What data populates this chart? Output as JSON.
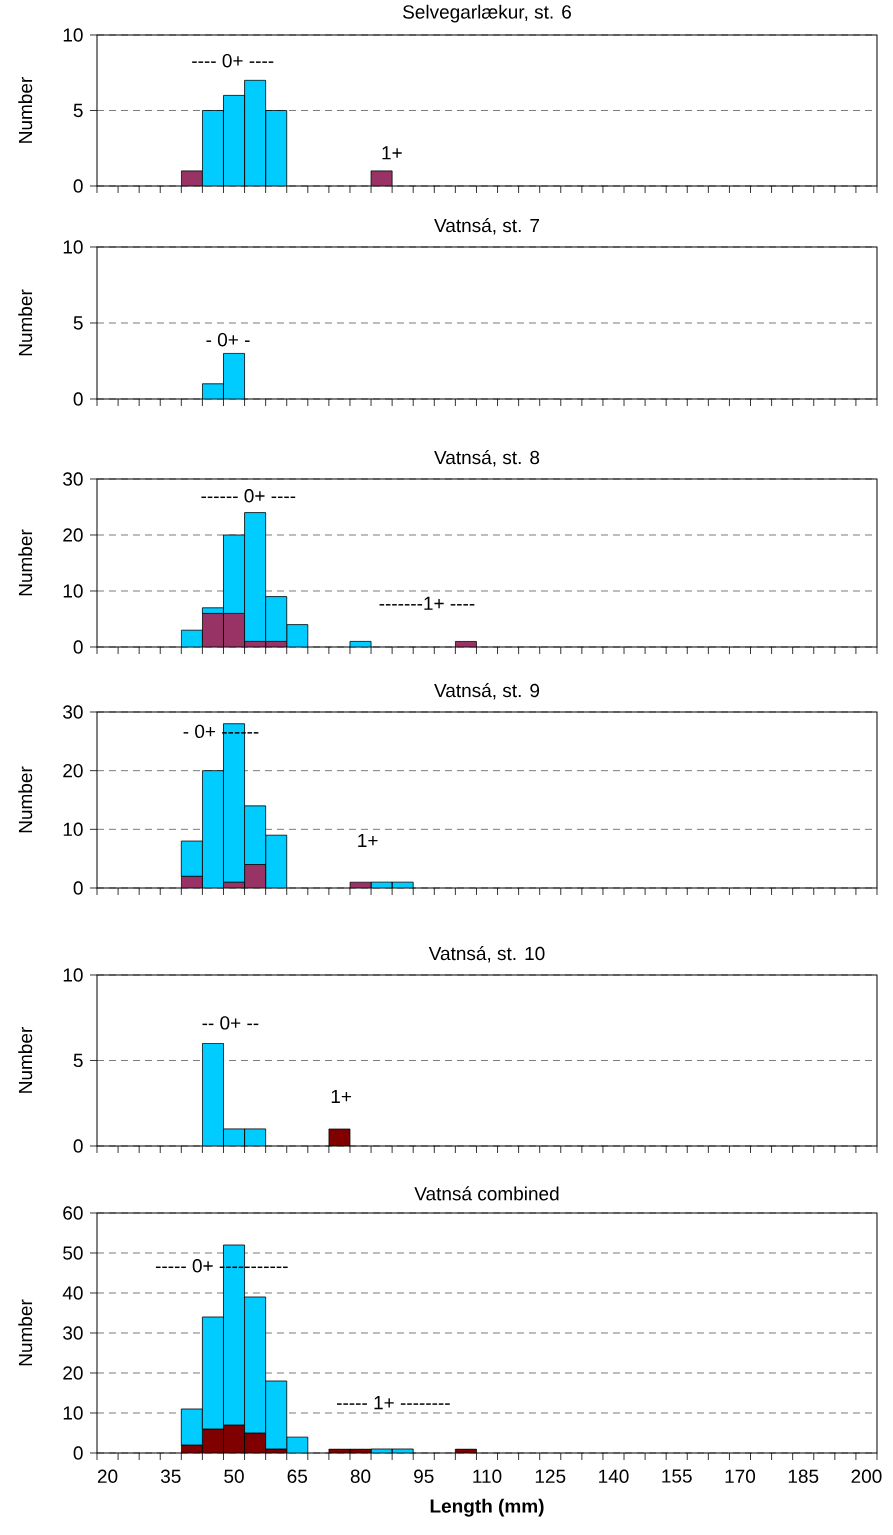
{
  "chart_data": [
    {
      "type": "bar",
      "title": "Selvegarlækur, st. 6",
      "ylabel": "Number",
      "stacked": true,
      "grid": "y",
      "tick_labels": "y",
      "ylim": [
        0,
        10
      ],
      "yticks": [
        0,
        5,
        10
      ],
      "categories": [
        "20",
        null,
        null,
        "35",
        null,
        null,
        "50",
        null,
        null,
        "65",
        null,
        null,
        "80",
        null,
        null,
        "95",
        null,
        null,
        "110",
        null,
        null,
        "125",
        null,
        null,
        "140",
        null,
        null,
        "155",
        null,
        null,
        "170",
        null,
        null,
        "185",
        null,
        null,
        "200"
      ],
      "annotations": [
        "---- 0+ ----",
        "1+"
      ],
      "series": [
        {
          "color": "#993366",
          "values": [
            null,
            null,
            null,
            null,
            1,
            null,
            null,
            null,
            null,
            null,
            null,
            null,
            null,
            1,
            null,
            null,
            null,
            null,
            null,
            null,
            null,
            null,
            null,
            null,
            null,
            null,
            null,
            null,
            null,
            null,
            null,
            null,
            null,
            null,
            null,
            null,
            null
          ]
        },
        {
          "color": "#00ccff",
          "values": [
            null,
            null,
            null,
            null,
            null,
            5,
            6,
            7,
            5,
            null,
            null,
            null,
            null,
            null,
            null,
            null,
            null,
            null,
            null,
            null,
            null,
            null,
            null,
            null,
            null,
            null,
            null,
            null,
            null,
            null,
            null,
            null,
            null,
            null,
            null,
            null,
            null
          ]
        }
      ]
    },
    {
      "type": "bar",
      "title": "Vatnsá, st. 7",
      "ylabel": "Number",
      "stacked": true,
      "grid": "y",
      "tick_labels": "y",
      "ylim": [
        0,
        10
      ],
      "yticks": [
        0,
        5,
        10
      ],
      "categories": [
        "20",
        null,
        null,
        "35",
        null,
        null,
        "50",
        null,
        null,
        "65",
        null,
        null,
        "80",
        null,
        null,
        "95",
        null,
        null,
        "110",
        null,
        null,
        "125",
        null,
        null,
        "140",
        null,
        null,
        "155",
        null,
        null,
        "170",
        null,
        null,
        "185",
        null,
        null,
        "200"
      ],
      "annotations": [
        "- 0+ -"
      ],
      "series": [
        {
          "color": "#00ccff",
          "values": [
            null,
            null,
            null,
            null,
            null,
            1,
            3,
            null,
            null,
            null,
            null,
            null,
            null,
            null,
            null,
            null,
            null,
            null,
            null,
            null,
            null,
            null,
            null,
            null,
            null,
            null,
            null,
            null,
            null,
            null,
            null,
            null,
            null,
            null,
            null,
            null,
            null
          ]
        }
      ]
    },
    {
      "type": "bar",
      "title": "Vatnsá, st. 8",
      "ylabel": "Number",
      "stacked": true,
      "grid": "y",
      "tick_labels": "y",
      "ylim": [
        0,
        30
      ],
      "yticks": [
        0,
        10,
        20,
        30
      ],
      "categories": [
        "20",
        null,
        null,
        "35",
        null,
        null,
        "50",
        null,
        null,
        "65",
        null,
        null,
        "80",
        null,
        null,
        "95",
        null,
        null,
        "110",
        null,
        null,
        "125",
        null,
        null,
        "140",
        null,
        null,
        "155",
        null,
        null,
        "170",
        null,
        null,
        "185",
        null,
        null,
        "200"
      ],
      "annotations": [
        "------ 0+ ----",
        "-------1+  ----"
      ],
      "series": [
        {
          "color": "#993366",
          "values": [
            null,
            null,
            null,
            null,
            null,
            6,
            6,
            1,
            1,
            null,
            null,
            null,
            null,
            null,
            null,
            null,
            null,
            1,
            null,
            null,
            null,
            null,
            null,
            null,
            null,
            null,
            null,
            null,
            null,
            null,
            null,
            null,
            null,
            null,
            null,
            null,
            null
          ]
        },
        {
          "color": "#00ccff",
          "values": [
            null,
            null,
            null,
            null,
            3,
            1,
            14,
            23,
            8,
            4,
            null,
            null,
            1,
            null,
            null,
            null,
            null,
            null,
            null,
            null,
            null,
            null,
            null,
            null,
            null,
            null,
            null,
            null,
            null,
            null,
            null,
            null,
            null,
            null,
            null,
            null,
            null
          ]
        }
      ]
    },
    {
      "type": "bar",
      "title": "Vatnsá, st. 9",
      "ylabel": "Number",
      "stacked": true,
      "grid": "y",
      "tick_labels": "y",
      "ylim": [
        0,
        30
      ],
      "yticks": [
        0,
        10,
        20,
        30
      ],
      "categories": [
        "20",
        null,
        null,
        "35",
        null,
        null,
        "50",
        null,
        null,
        "65",
        null,
        null,
        "80",
        null,
        null,
        "95",
        null,
        null,
        "110",
        null,
        null,
        "125",
        null,
        null,
        "140",
        null,
        null,
        "155",
        null,
        null,
        "170",
        null,
        null,
        "185",
        null,
        null,
        "200"
      ],
      "annotations": [
        "- 0+ ------",
        "1+"
      ],
      "series": [
        {
          "color": "#993366",
          "values": [
            null,
            null,
            null,
            null,
            2,
            null,
            1,
            4,
            null,
            null,
            null,
            null,
            1,
            null,
            null,
            null,
            null,
            null,
            null,
            null,
            null,
            null,
            null,
            null,
            null,
            null,
            null,
            null,
            null,
            null,
            null,
            null,
            null,
            null,
            null,
            null,
            null
          ]
        },
        {
          "color": "#00ccff",
          "values": [
            null,
            null,
            null,
            null,
            6,
            20,
            27,
            10,
            9,
            null,
            null,
            null,
            null,
            1,
            1,
            null,
            null,
            null,
            null,
            null,
            null,
            null,
            null,
            null,
            null,
            null,
            null,
            null,
            null,
            null,
            null,
            null,
            null,
            null,
            null,
            null,
            null
          ]
        }
      ]
    },
    {
      "type": "bar",
      "title": "Vatnsá, st. 10",
      "ylabel": "Number",
      "stacked": true,
      "grid": "y",
      "tick_labels": "y",
      "ylim": [
        0,
        10
      ],
      "yticks": [
        0,
        5,
        10
      ],
      "categories": [
        "20",
        null,
        null,
        "35",
        null,
        null,
        "50",
        null,
        null,
        "65",
        null,
        null,
        "80",
        null,
        null,
        "95",
        null,
        null,
        "110",
        null,
        null,
        "125",
        null,
        null,
        "140",
        null,
        null,
        "155",
        null,
        null,
        "170",
        null,
        null,
        "185",
        null,
        null,
        "200"
      ],
      "annotations": [
        "-- 0+ --",
        "1+"
      ],
      "series": [
        {
          "color": "#800000",
          "values": [
            null,
            null,
            null,
            null,
            null,
            null,
            null,
            null,
            null,
            null,
            null,
            1,
            null,
            null,
            null,
            null,
            null,
            null,
            null,
            null,
            null,
            null,
            null,
            null,
            null,
            null,
            null,
            null,
            null,
            null,
            null,
            null,
            null,
            null,
            null,
            null,
            null
          ]
        },
        {
          "color": "#00ccff",
          "values": [
            null,
            null,
            null,
            null,
            null,
            6,
            1,
            1,
            null,
            null,
            null,
            null,
            null,
            null,
            null,
            null,
            null,
            null,
            null,
            null,
            null,
            null,
            null,
            null,
            null,
            null,
            null,
            null,
            null,
            null,
            null,
            null,
            null,
            null,
            null,
            null,
            null
          ]
        }
      ]
    },
    {
      "type": "bar",
      "title": "Vatnsá  combined",
      "ylabel": "Number",
      "xlabel": "Length (mm)",
      "stacked": true,
      "grid": "y",
      "ylim": [
        0,
        60
      ],
      "yticks": [
        0,
        10,
        20,
        30,
        40,
        50,
        60
      ],
      "categories": [
        "20",
        null,
        null,
        "35",
        null,
        null,
        "50",
        null,
        null,
        "65",
        null,
        null,
        "80",
        null,
        null,
        "95",
        null,
        null,
        "110",
        null,
        null,
        "125",
        null,
        null,
        "140",
        null,
        null,
        "155",
        null,
        null,
        "170",
        null,
        null,
        "185",
        null,
        null,
        "200"
      ],
      "annotations": [
        "----- 0+ -----------",
        "----- 1+ --------"
      ],
      "series": [
        {
          "color": "#800000",
          "values": [
            null,
            null,
            null,
            null,
            2,
            6,
            7,
            5,
            1,
            null,
            null,
            1,
            1,
            null,
            null,
            null,
            null,
            1,
            null,
            null,
            null,
            null,
            null,
            null,
            null,
            null,
            null,
            null,
            null,
            null,
            null,
            null,
            null,
            null,
            null,
            null,
            null
          ]
        },
        {
          "color": "#00ccff",
          "values": [
            null,
            null,
            null,
            null,
            9,
            28,
            45,
            34,
            17,
            4,
            null,
            null,
            null,
            1,
            1,
            null,
            null,
            null,
            null,
            null,
            null,
            null,
            null,
            null,
            null,
            null,
            null,
            null,
            null,
            null,
            null,
            null,
            null,
            null,
            null,
            null,
            null
          ]
        }
      ]
    }
  ]
}
